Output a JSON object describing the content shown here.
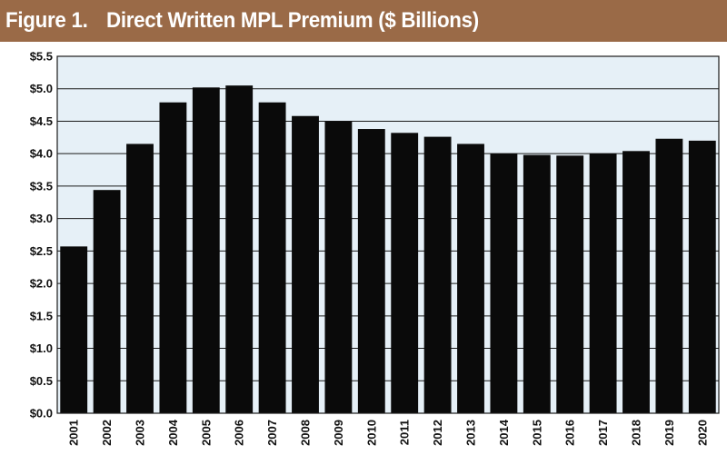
{
  "figure": {
    "label": "Figure 1.",
    "title": "Direct Written MPL Premium ($ Billions)"
  },
  "colors": {
    "header_bg": "#9a6a47",
    "plot_bg": "#e6f0f7",
    "bar": "#0a0a0a",
    "grid": "#1a1a1a"
  },
  "chart_data": {
    "type": "bar",
    "title": "Direct Written MPL Premium ($ Billions)",
    "xlabel": "",
    "ylabel": "",
    "categories": [
      "2001",
      "2002",
      "2003",
      "2004",
      "2005",
      "2006",
      "2007",
      "2008",
      "2009",
      "2010",
      "2011",
      "2012",
      "2013",
      "2014",
      "2015",
      "2016",
      "2017",
      "2018",
      "2019",
      "2020"
    ],
    "values": [
      2.57,
      3.44,
      4.15,
      4.79,
      5.02,
      5.05,
      4.79,
      4.58,
      4.5,
      4.38,
      4.32,
      4.26,
      4.15,
      4.0,
      3.98,
      3.97,
      4.0,
      4.04,
      4.23,
      4.2
    ],
    "ylim": [
      0,
      5.5
    ],
    "yticks": [
      "$0.0",
      "$0.5",
      "$1.0",
      "$1.5",
      "$2.0",
      "$2.5",
      "$3.0",
      "$3.5",
      "$4.0",
      "$4.5",
      "$5.0",
      "$5.5"
    ],
    "grid": true,
    "legend": "none"
  }
}
